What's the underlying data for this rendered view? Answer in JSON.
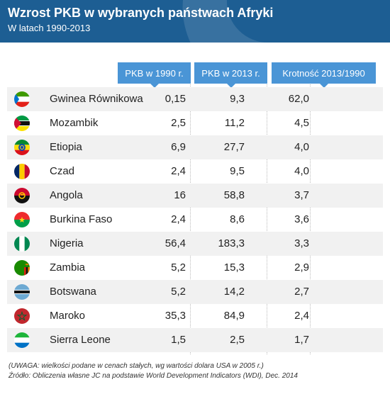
{
  "title": "Wzrost PKB w wybranych państwach Afryki",
  "subtitle": "W latach 1990-2013",
  "columns": [
    "PKB w 1990 r.",
    "PKB w 2013 r.",
    "Krotność 2013/1990"
  ],
  "colors": {
    "header_bg": "#1d5e93",
    "column_header_bg": "#4a95d6",
    "row_alt_bg": "#f1f1f1"
  },
  "chart_data": {
    "type": "table",
    "title": "Wzrost PKB w wybranych państwach Afryki",
    "subtitle": "W latach 1990-2013",
    "columns": [
      "PKB w 1990 r.",
      "PKB w 2013 r.",
      "Krotność 2013/1990"
    ],
    "rows": [
      {
        "country": "Gwinea Równikowa",
        "flag": "equatorial-guinea-flag",
        "v1990": "0,15",
        "v2013": "9,3",
        "ratio": "62,0"
      },
      {
        "country": "Mozambik",
        "flag": "mozambique-flag",
        "v1990": "2,5",
        "v2013": "11,2",
        "ratio": "4,5"
      },
      {
        "country": "Etiopia",
        "flag": "ethiopia-flag",
        "v1990": "6,9",
        "v2013": "27,7",
        "ratio": "4,0"
      },
      {
        "country": "Czad",
        "flag": "chad-flag",
        "v1990": "2,4",
        "v2013": "9,5",
        "ratio": "4,0"
      },
      {
        "country": "Angola",
        "flag": "angola-flag",
        "v1990": "16",
        "v2013": "58,8",
        "ratio": "3,7"
      },
      {
        "country": "Burkina Faso",
        "flag": "burkina-faso-flag",
        "v1990": "2,4",
        "v2013": "8,6",
        "ratio": "3,6"
      },
      {
        "country": "Nigeria",
        "flag": "nigeria-flag",
        "v1990": "56,4",
        "v2013": "183,3",
        "ratio": "3,3"
      },
      {
        "country": "Zambia",
        "flag": "zambia-flag",
        "v1990": "5,2",
        "v2013": "15,3",
        "ratio": "2,9"
      },
      {
        "country": "Botswana",
        "flag": "botswana-flag",
        "v1990": "5,2",
        "v2013": "14,2",
        "ratio": "2,7"
      },
      {
        "country": "Maroko",
        "flag": "morocco-flag",
        "v1990": "35,3",
        "v2013": "84,9",
        "ratio": "2,4"
      },
      {
        "country": "Sierra Leone",
        "flag": "sierra-leone-flag",
        "v1990": "1,5",
        "v2013": "2,5",
        "ratio": "1,7"
      }
    ]
  },
  "notes": {
    "note": "(UWAGA: wielkości podane w cenach stałych, wg wartości dolara USA w 2005 r.)",
    "source": "Źródło:  Obliczenia własne JC na podstawie World Development Indicators (WDI), Dec. 2014"
  }
}
